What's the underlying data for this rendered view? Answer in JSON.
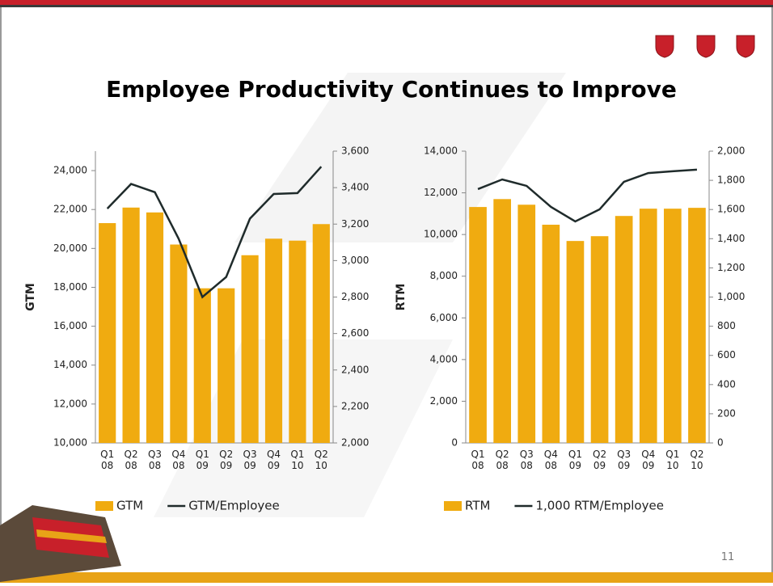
{
  "title": "Employee Productivity Continues to Improve",
  "slide_number": "11",
  "chart_data": [
    {
      "type": "bar",
      "y_label": "GTM",
      "categories": [
        "Q1 08",
        "Q2 08",
        "Q3 08",
        "Q4 08",
        "Q1 09",
        "Q2 09",
        "Q3 09",
        "Q4 09",
        "Q1 10",
        "Q2 10"
      ],
      "series": [
        {
          "name": "GTM",
          "type": "bar",
          "color": "#f0ab10",
          "values": [
            21300,
            22100,
            21850,
            20200,
            17950,
            17950,
            19650,
            20500,
            20400,
            21250
          ]
        },
        {
          "name": "GTM/Employee",
          "type": "line",
          "axis": "y2",
          "color": "#1f2b2b",
          "values": [
            3285,
            3420,
            3375,
            3120,
            2800,
            2910,
            3230,
            3365,
            3370,
            3515
          ]
        }
      ],
      "ylim": [
        10000,
        25000
      ],
      "yticks": [
        {
          "value": 10000,
          "label": "10,000"
        },
        {
          "value": 12000,
          "label": "12,000"
        },
        {
          "value": 14000,
          "label": "14,000"
        },
        {
          "value": 16000,
          "label": "16,000"
        },
        {
          "value": 18000,
          "label": "18,000"
        },
        {
          "value": 20000,
          "label": "20,000"
        },
        {
          "value": 22000,
          "label": "22,000"
        },
        {
          "value": 24000,
          "label": "24,000"
        }
      ],
      "y2lim": [
        2000,
        3600
      ],
      "y2ticks": [
        {
          "value": 2000,
          "label": "2,000"
        },
        {
          "value": 2200,
          "label": "2,200"
        },
        {
          "value": 2400,
          "label": "2,400"
        },
        {
          "value": 2600,
          "label": "2,600"
        },
        {
          "value": 2800,
          "label": "2,800"
        },
        {
          "value": 3000,
          "label": "3,000"
        },
        {
          "value": 3200,
          "label": "3,200"
        },
        {
          "value": 3400,
          "label": "3,400"
        },
        {
          "value": 3600,
          "label": "3,600"
        }
      ],
      "legend": "bottom"
    },
    {
      "type": "bar",
      "y_label": "RTM",
      "categories": [
        "Q1 08",
        "Q2 08",
        "Q3 08",
        "Q4 08",
        "Q1 09",
        "Q2 09",
        "Q3 09",
        "Q4 09",
        "Q1 10",
        "Q2 10"
      ],
      "series": [
        {
          "name": "RTM",
          "type": "bar",
          "color": "#f0ab10",
          "values": [
            11320,
            11700,
            11430,
            10470,
            9690,
            9920,
            10890,
            11240,
            11240,
            11280
          ]
        },
        {
          "name": "1,000 RTM/Employee",
          "type": "line",
          "axis": "y2",
          "color": "#1f2b2b",
          "values": [
            1740,
            1806,
            1762,
            1618,
            1518,
            1601,
            1790,
            1850,
            1862,
            1873
          ]
        }
      ],
      "ylim": [
        0,
        14000
      ],
      "yticks": [
        0,
        {
          "value": 2000,
          "label": "2,000"
        },
        {
          "value": 4000,
          "label": "4,000"
        },
        {
          "value": 6000,
          "label": "6,000"
        },
        {
          "value": 8000,
          "label": "8,000"
        },
        {
          "value": 10000,
          "label": "10,000"
        },
        {
          "value": 12000,
          "label": "12,000"
        },
        {
          "value": 14000,
          "label": "14,000"
        }
      ],
      "y2lim": [
        0,
        2000
      ],
      "y2ticks": [
        0,
        200,
        400,
        600,
        800,
        {
          "value": 1000,
          "label": "1,000"
        },
        {
          "value": 1200,
          "label": "1,200"
        },
        {
          "value": 1400,
          "label": "1,400"
        },
        {
          "value": 1600,
          "label": "1,600"
        },
        {
          "value": 1800,
          "label": "1,800"
        },
        {
          "value": 2000,
          "label": "2,000"
        }
      ],
      "legend": "bottom"
    }
  ]
}
